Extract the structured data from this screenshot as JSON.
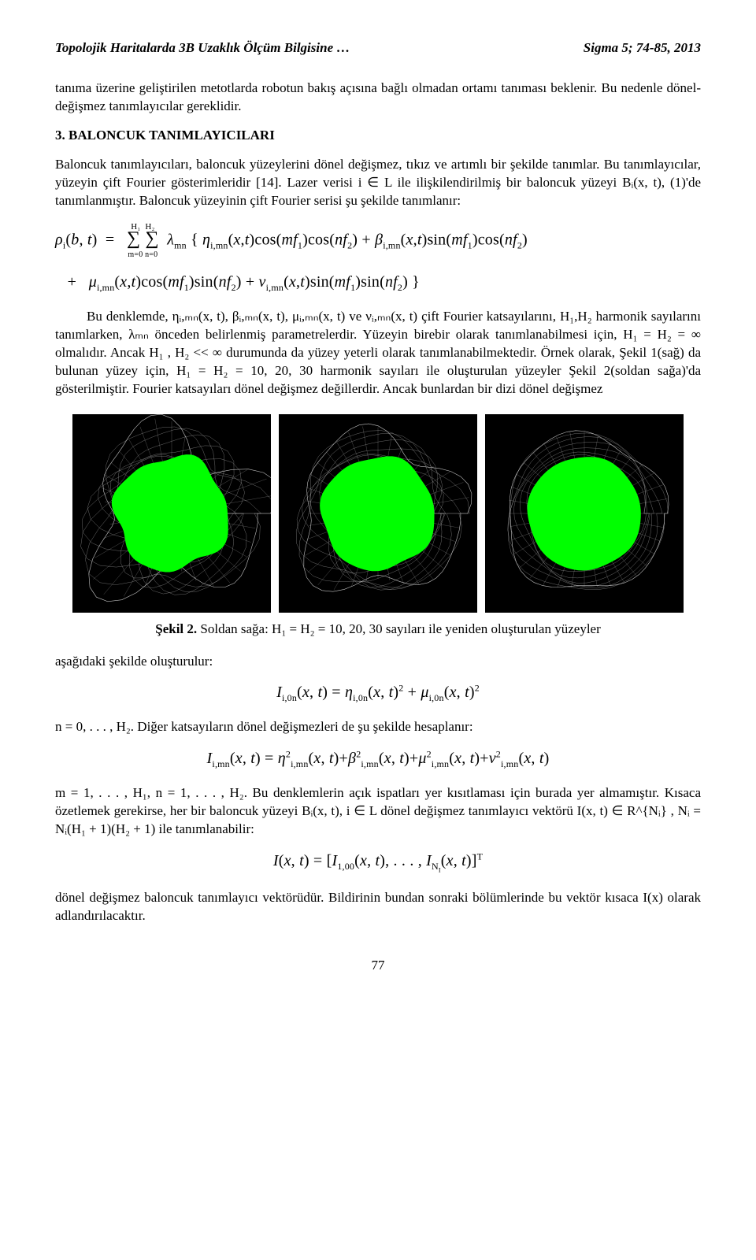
{
  "header": {
    "left": "Topolojik Haritalarda 3B Uzaklık Ölçüm Bilgisine …",
    "right": "Sigma 5; 74-85, 2013"
  },
  "para1": "tanıma üzerine geliştirilen metotlarda robotun bakış açısına bağlı olmadan ortamı tanıması beklenir. Bu nedenle dönel-değişmez tanımlayıcılar gereklidir.",
  "section3_title": "3. BALONCUK TANIMLAYICILARI",
  "para2": "Baloncuk tanımlayıcıları, baloncuk yüzeylerini dönel değişmez, tıkız ve artımlı bir şekilde tanımlar. Bu tanımlayıcılar, yüzeyin çift Fourier gösterimleridir [14]. Lazer verisi i ∈ L ile ilişkilendirilmiş bir baloncuk yüzeyi Bᵢ(x, t), (1)'de tanımlanmıştır. Baloncuk yüzeyinin çift Fourier serisi şu şekilde tanımlanır:",
  "eq_rho_line1": "ρᵢ(b, t)   =   ",
  "eq_rho_sum": "∑ₘ₌₀^{H₁} ∑ₙ₌₀^{H₂}  λₘₙ { ηᵢ,ₘₙ(x, t)cos(mf₁)cos(nf₂) + βᵢ,ₘₙ(x, t)sin(mf₁)cos(nf₂)",
  "eq_rho_line2": "   +   μᵢ,ₘₙ(x, t)cos(mf₁)sin(nf₂) + νᵢ,ₘₙ(x, t)sin(mf₁)sin(nf₂) }",
  "para3_a": "Bu denklemde, ηᵢ,ₘₙ(x, t), βᵢ,ₘₙ(x, t), μᵢ,ₘₙ(x, t) ve νᵢ,ₘₙ(x, t) çift Fourier katsayılarını, H₁,H₂ harmonik sayılarını tanımlarken, λₘₙ önceden belirlenmiş parametrelerdir. Yüzeyin birebir olarak tanımlanabilmesi için, H₁ = H₂ = ∞ olmalıdır. Ancak H₁ , H₂ <<  ∞  durumunda da yüzey yeterli olarak tanımlanabilmektedir. Örnek olarak, Şekil 1(sağ) da bulunan yüzey için, H₁ = H₂ = 10, 20, 30 harmonik sayıları ile oluşturulan yüzeyler Şekil 2(soldan sağa)'da gösterilmiştir. Fourier katsayıları dönel değişmez değillerdir. Ancak bunlardan bir dizi dönel değişmez",
  "figure2": {
    "panels": [
      {
        "bg": "#000000",
        "blob_color": "#00ff00",
        "mesh_color": "#c0c0c0",
        "roughness": 0.55
      },
      {
        "bg": "#000000",
        "blob_color": "#00ff00",
        "mesh_color": "#c0c0c0",
        "roughness": 0.3
      },
      {
        "bg": "#000000",
        "blob_color": "#00ff00",
        "mesh_color": "#c0c0c0",
        "roughness": 0.12
      }
    ],
    "caption_bold": "Şekil 2.",
    "caption_rest": " Soldan sağa: H₁ = H₂ = 10, 20, 30 sayıları ile yeniden oluşturulan yüzeyler"
  },
  "para4": "aşağıdaki şekilde oluşturulur:",
  "eq_I0n": "Iᵢ,₀ₙ(x, t) = ηᵢ,₀ₙ(x, t)² + μᵢ,₀ₙ(x, t)²",
  "para5": "n = 0, . . . , H₂. Diğer katsayıların dönel değişmezleri de şu şekilde hesaplanır:",
  "eq_Imn": "Iᵢ,ₘₙ(x, t) = η²ᵢ,ₘₙ(x, t) + β²ᵢ,ₘₙ(x, t) + μ²ᵢ,ₘₙ(x, t) + ν²ᵢ,ₘₙ(x, t)",
  "para6": "m = 1, . . . , H₁, n = 1, . . . , H₂. Bu denklemlerin açık ispatları yer kısıtlaması için burada yer almamıştır. Kısaca özetlemek gerekirse, her bir baloncuk yüzeyi Bᵢ(x, t), i ∈ L dönel değişmez tanımlayıcı vektörü I(x, t) ∈ R^{Nᵢ} , Nᵢ = Nᵢ(H₁ + 1)(H₂ + 1) ile tanımlanabilir:",
  "eq_Ivec": "I(x, t) = [I₁,₀₀(x, t), . . . , I_{Nᵢ}(x, t)]ᵀ",
  "para7": "dönel değişmez baloncuk tanımlayıcı vektörüdür. Bildirinin bundan sonraki bölümlerinde bu vektör kısaca I(x) olarak adlandırılacaktır.",
  "page_number": "77"
}
